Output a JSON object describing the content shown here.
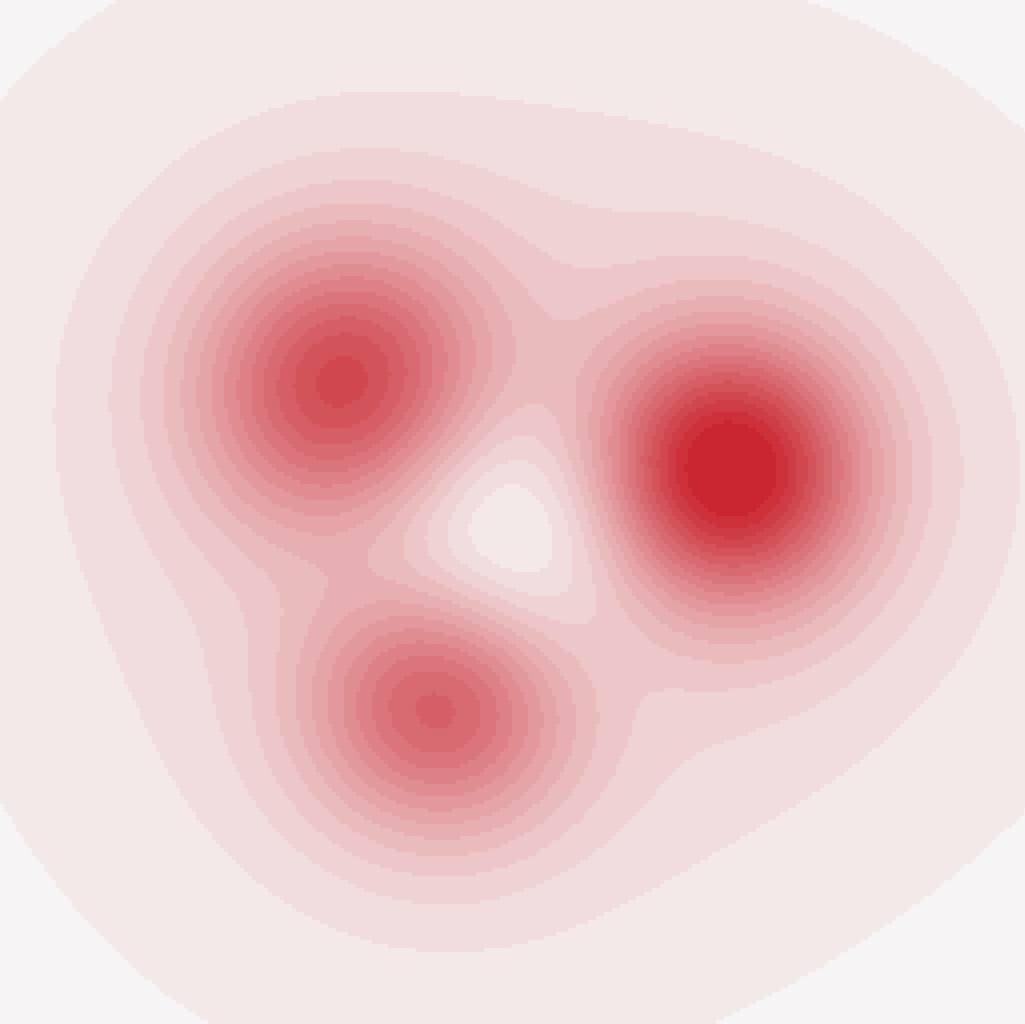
{
  "chart_data": {
    "type": "heatmap",
    "title": "",
    "xlabel": "",
    "ylabel": "",
    "xlim": [
      0,
      1
    ],
    "ylim": [
      0,
      1
    ],
    "colormap": "diverging-blue-white-red",
    "colors": {
      "negative": "#b6d7ea",
      "neutral": "#f6f4f4",
      "positive": "#c9252f"
    },
    "value_range": [
      -1,
      1
    ],
    "grid": false,
    "legend": "none",
    "features": [
      {
        "kind": "peak",
        "x": 0.34,
        "y": 0.62,
        "amplitude": 0.72,
        "spread": 0.1
      },
      {
        "kind": "peak",
        "x": 0.71,
        "y": 0.54,
        "amplitude": 0.92,
        "spread": 0.09
      },
      {
        "kind": "peak",
        "x": 0.43,
        "y": 0.32,
        "amplitude": 0.66,
        "spread": 0.09
      },
      {
        "kind": "trough",
        "x": 0.48,
        "y": 0.47,
        "amplitude": -0.32,
        "spread": 0.11
      }
    ]
  }
}
